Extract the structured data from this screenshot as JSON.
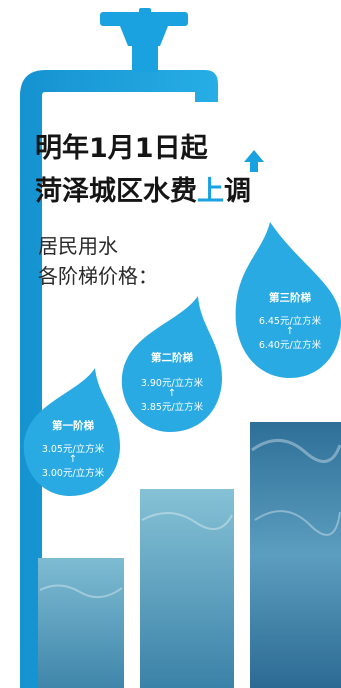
{
  "headline": {
    "line1": "明年1月1日起",
    "line2_before": "菏泽城区水费",
    "line2_highlight": "上",
    "line2_after": "调"
  },
  "subtitle": {
    "line1": "居民用水",
    "line2": "各阶梯价格："
  },
  "tiers": [
    {
      "name": "第一阶梯",
      "new_price": "3.05元/立方米",
      "arrow": "↑",
      "old_price": "3.00元/立方米",
      "relative_height": 0.48
    },
    {
      "name": "第二阶梯",
      "new_price": "3.90元/立方米",
      "arrow": "↑",
      "old_price": "3.85元/立方米",
      "relative_height": 0.74
    },
    {
      "name": "第三阶梯",
      "new_price": "6.45元/立方米",
      "arrow": "↑",
      "old_price": "6.40元/立方米",
      "relative_height": 1.0
    }
  ],
  "colors": {
    "pipe": "#1aa2e0",
    "drop": "#29aae3",
    "highlight": "#1aa2e0",
    "water": "#4b8fb2"
  }
}
